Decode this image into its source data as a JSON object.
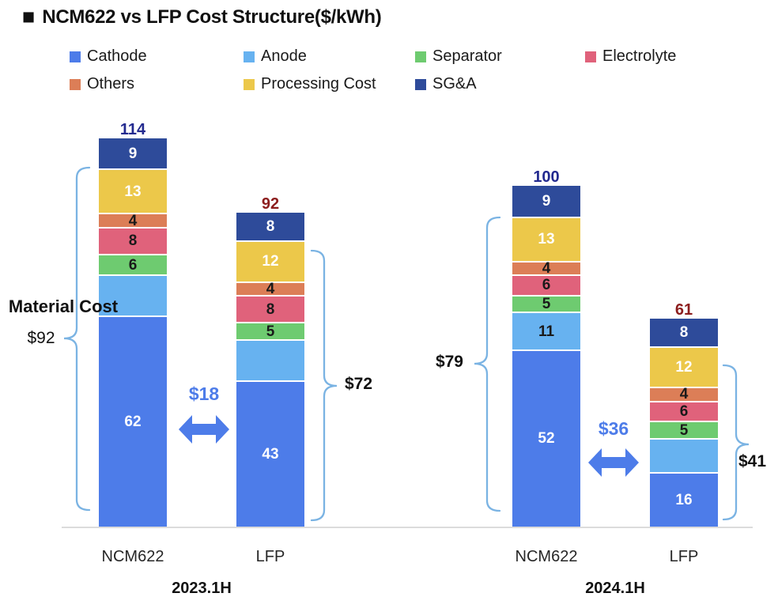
{
  "title": {
    "bullet": "■",
    "text": "NCM622 vs LFP Cost Structure($/kWh)"
  },
  "colors": {
    "cathode": "#4d7ce9",
    "anode": "#67b2f0",
    "separator": "#6ecb70",
    "electrolyte": "#e0627b",
    "others": "#dc7e57",
    "processing": "#ecc84a",
    "sga": "#2e4b9a",
    "ncm_total_label": "#232a8f",
    "lfp_total_label": "#8c1d1d",
    "arrow": "#4d7ce9",
    "brace": "#7ab3e3",
    "axis_line": "#dcdcdc",
    "text": "#1a1a1a"
  },
  "legend": {
    "rows": [
      [
        {
          "label": "Cathode",
          "key": "cathode"
        },
        {
          "label": "Anode",
          "key": "anode"
        },
        {
          "label": "Separator",
          "key": "separator"
        },
        {
          "label": "Electrolyte",
          "key": "electrolyte"
        }
      ],
      [
        {
          "label": "Others",
          "key": "others"
        },
        {
          "label": "Processing Cost",
          "key": "processing"
        },
        {
          "label": "SG&A",
          "key": "sga"
        }
      ]
    ]
  },
  "chart_data": {
    "type": "bar",
    "stacked": true,
    "unit": "$/kWh",
    "ylim": [
      0,
      120
    ],
    "legend_position": "top",
    "grid": false,
    "series_bottom_to_top": [
      {
        "name": "Cathode",
        "key": "cathode",
        "value_text_color": "#ffffff"
      },
      {
        "name": "Anode",
        "key": "anode",
        "value_text_color": "#1a1a1a"
      },
      {
        "name": "Separator",
        "key": "separator",
        "value_text_color": "#1a1a1a"
      },
      {
        "name": "Electrolyte",
        "key": "electrolyte",
        "value_text_color": "#1a1a1a"
      },
      {
        "name": "Others",
        "key": "others",
        "value_text_color": "#1a1a1a"
      },
      {
        "name": "Processing Cost",
        "key": "processing",
        "value_text_color": "#ffffff"
      },
      {
        "name": "SG&A",
        "key": "sga",
        "value_text_color": "#ffffff"
      }
    ],
    "groups": [
      "2023.1H",
      "2024.1H"
    ],
    "bars": [
      {
        "group": "2023.1H",
        "label": "NCM622",
        "total": 114,
        "total_label": "114",
        "total_color": "ncm",
        "values": [
          62,
          12,
          6,
          8,
          4,
          13,
          9
        ],
        "value_labels": [
          "62",
          "",
          "6",
          "8",
          "4",
          "13",
          "9"
        ]
      },
      {
        "group": "2023.1H",
        "label": "LFP",
        "total": 92,
        "total_label": "92",
        "total_color": "lfp",
        "values": [
          43,
          12,
          5,
          8,
          4,
          12,
          8
        ],
        "value_labels": [
          "43",
          "",
          "5",
          "8",
          "4",
          "12",
          "8"
        ]
      },
      {
        "group": "2024.1H",
        "label": "NCM622",
        "total": 100,
        "total_label": "100",
        "total_color": "ncm",
        "values": [
          52,
          11,
          5,
          6,
          4,
          13,
          9
        ],
        "value_labels": [
          "52",
          "11",
          "5",
          "6",
          "4",
          "13",
          "9"
        ]
      },
      {
        "group": "2024.1H",
        "label": "LFP",
        "total": 61,
        "total_label": "61",
        "total_color": "lfp",
        "values": [
          16,
          10,
          5,
          6,
          4,
          12,
          8
        ],
        "value_labels": [
          "16",
          "",
          "5",
          "6",
          "4",
          "12",
          "8"
        ]
      }
    ],
    "annotations": {
      "material_cost_title": "Material Cost",
      "braces": [
        {
          "id": "ncm_2023",
          "value": "$92"
        },
        {
          "id": "lfp_2023",
          "value": "$72"
        },
        {
          "id": "ncm_2024",
          "value": "$79"
        },
        {
          "id": "lfp_2024",
          "value": "$41"
        }
      ],
      "arrows": [
        {
          "id": "gap_2023",
          "value": "$18"
        },
        {
          "id": "gap_2024",
          "value": "$36"
        }
      ]
    }
  }
}
